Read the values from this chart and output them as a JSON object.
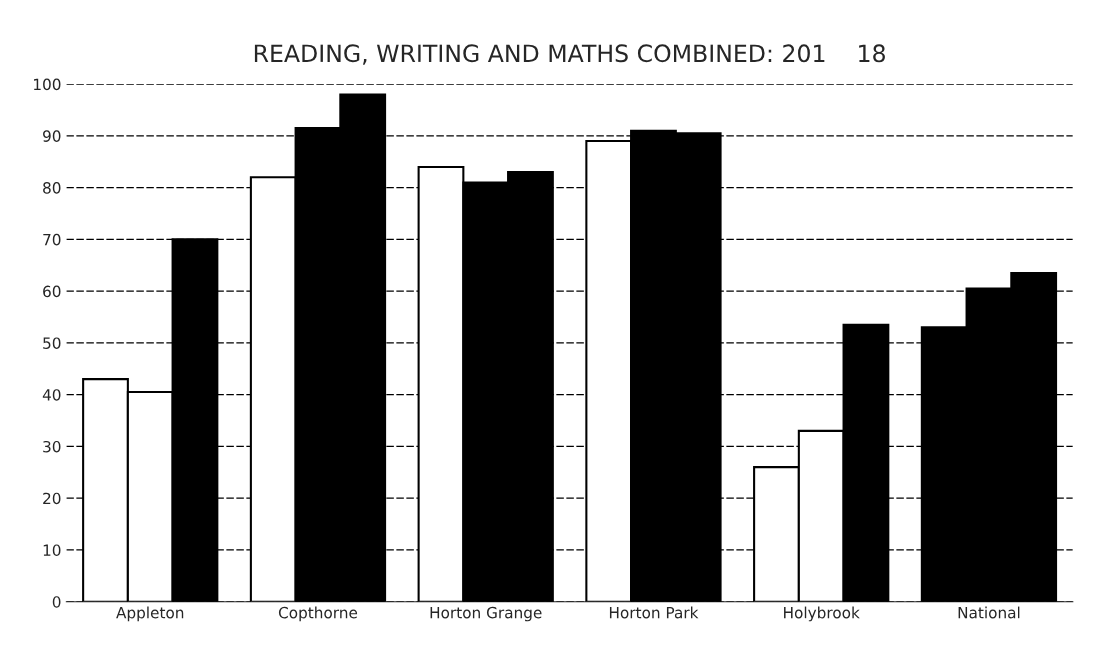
{
  "chart_data": {
    "type": "bar",
    "title": "READING, WRITING AND MATHS COMBINED: 201    18",
    "categories": [
      "Appleton",
      "Copthorne",
      "Horton Grange",
      "Horton Park",
      "Holybrook",
      "National"
    ],
    "series": [
      {
        "colors": [
          "#ffffff",
          "#ffffff",
          "#ffffff",
          "#ffffff",
          "#ffffff",
          "#000000"
        ],
        "values": [
          43,
          82,
          84,
          89,
          26,
          53
        ]
      },
      {
        "colors": [
          "#ffffff",
          "#000000",
          "#000000",
          "#000000",
          "#ffffff",
          "#000000"
        ],
        "values": [
          40.5,
          91.5,
          81,
          91,
          33,
          60.5
        ]
      },
      {
        "colors": [
          "#000000",
          "#000000",
          "#000000",
          "#000000",
          "#000000",
          "#000000"
        ],
        "values": [
          70,
          98,
          83,
          90.5,
          53.5,
          63.5
        ]
      }
    ],
    "ylim": [
      0,
      100
    ],
    "yticks": [
      0,
      10,
      20,
      30,
      40,
      50,
      60,
      70,
      80,
      90,
      100
    ],
    "grid": "y",
    "legend": false
  }
}
